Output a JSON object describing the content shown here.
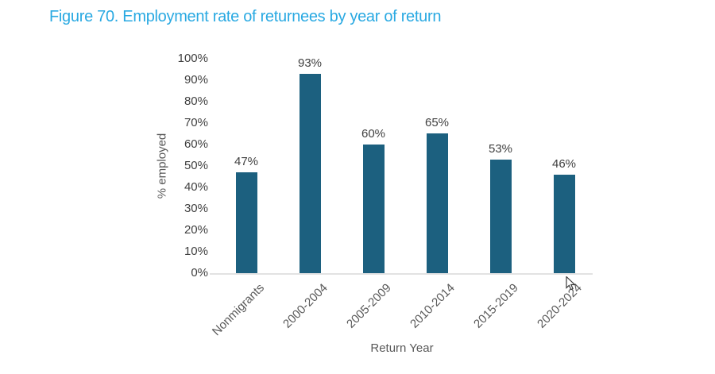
{
  "title": {
    "text": "Figure 70. Employment rate of returnees by year of return",
    "color": "#29A9E2"
  },
  "chart_data": {
    "type": "bar",
    "title": "Figure 70. Employment rate of returnees by year of return",
    "categories": [
      "Nonmigrants",
      "2000-2004",
      "2005-2009",
      "2010-2014",
      "2015-2019",
      "2020-2024"
    ],
    "values": [
      47,
      93,
      60,
      65,
      53,
      46
    ],
    "data_labels": [
      "47%",
      "93%",
      "60%",
      "65%",
      "53%",
      "46%"
    ],
    "xlabel": "Return Year",
    "ylabel": "% employed",
    "ylim": [
      0,
      100
    ],
    "ytick_step": 10,
    "ytick_labels": [
      "0%",
      "10%",
      "20%",
      "30%",
      "40%",
      "50%",
      "60%",
      "70%",
      "80%",
      "90%",
      "100%"
    ],
    "grid": false,
    "legend": false,
    "bar_color": "#1C607F",
    "axis_line_color": "#E2E2E2",
    "ytick_color": "#404040",
    "xtick_color": "#595959",
    "data_label_color": "#404040",
    "title_color": "#29A9E2"
  }
}
